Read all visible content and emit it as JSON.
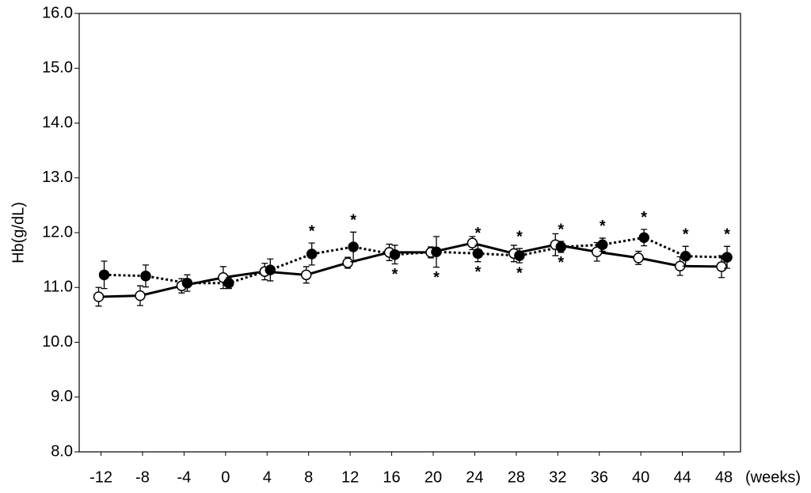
{
  "chart_data": {
    "type": "line",
    "y_label": "Hb(g/dL)",
    "x_label": "(weeks)",
    "x": [
      -12,
      -8,
      -4,
      0,
      4,
      8,
      12,
      16,
      20,
      24,
      28,
      32,
      36,
      40,
      44,
      48
    ],
    "xlim": [
      -14.1,
      49.6
    ],
    "xticks": [
      -12,
      -8,
      -4,
      0,
      4,
      8,
      12,
      16,
      20,
      24,
      28,
      32,
      36,
      40,
      44,
      48
    ],
    "ylim": [
      8,
      16
    ],
    "yticks": [
      {
        "value": 8,
        "label": "8.0"
      },
      {
        "value": 9,
        "label": "9.0"
      },
      {
        "value": 10,
        "label": "10.0"
      },
      {
        "value": 11,
        "label": "11.0"
      },
      {
        "value": 12,
        "label": "12.0"
      },
      {
        "value": 13,
        "label": "13.0"
      },
      {
        "value": 14,
        "label": "14.0"
      },
      {
        "value": 15,
        "label": "15.0"
      },
      {
        "value": 16,
        "label": "16.0"
      }
    ],
    "grid": false,
    "series": [
      {
        "color": "#000000",
        "line_style": "solid",
        "marker": "open",
        "values": [
          10.83,
          10.85,
          11.03,
          11.18,
          11.29,
          11.23,
          11.45,
          11.64,
          11.64,
          11.81,
          11.62,
          11.78,
          11.65,
          11.54,
          11.39,
          11.38
        ],
        "errors": [
          0.17,
          0.18,
          0.13,
          0.2,
          0.15,
          0.15,
          0.1,
          0.15,
          0.1,
          0.12,
          0.15,
          0.2,
          0.17,
          0.12,
          0.17,
          0.2
        ]
      },
      {
        "color": "#000000",
        "line_style": "dotted",
        "marker": "filled",
        "values": [
          11.23,
          11.21,
          11.08,
          11.08,
          11.32,
          11.61,
          11.74,
          11.6,
          11.65,
          11.62,
          11.58,
          11.74,
          11.78,
          11.91,
          11.57,
          11.55
        ],
        "errors": [
          0.25,
          0.2,
          0.15,
          0.1,
          0.2,
          0.2,
          0.27,
          0.17,
          0.28,
          0.15,
          0.13,
          0.1,
          0.12,
          0.15,
          0.18,
          0.2
        ]
      }
    ],
    "annotations": [
      {
        "text": "*",
        "x": 8,
        "side": "above"
      },
      {
        "text": "*",
        "x": 12,
        "side": "above"
      },
      {
        "text": "*",
        "x": 16,
        "side": "below"
      },
      {
        "text": "*",
        "x": 20,
        "side": "below"
      },
      {
        "text": "*",
        "x": 24,
        "side": "above"
      },
      {
        "text": "*",
        "x": 24,
        "side": "below"
      },
      {
        "text": "*",
        "x": 28,
        "side": "above"
      },
      {
        "text": "*",
        "x": 28,
        "side": "below"
      },
      {
        "text": "*",
        "x": 32,
        "side": "above"
      },
      {
        "text": "*",
        "x": 32,
        "side": "below"
      },
      {
        "text": "*",
        "x": 36,
        "side": "above"
      },
      {
        "text": "*",
        "x": 40,
        "side": "above"
      },
      {
        "text": "*",
        "x": 44,
        "side": "above"
      },
      {
        "text": "*",
        "x": 48,
        "side": "above"
      }
    ]
  }
}
